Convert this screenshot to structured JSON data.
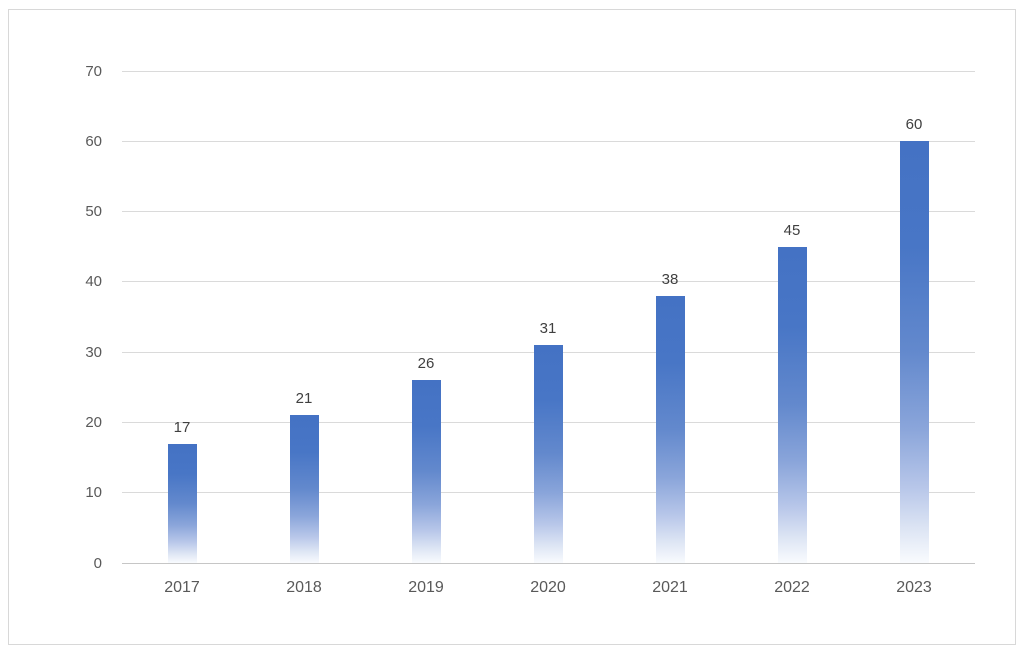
{
  "chart_data": {
    "type": "bar",
    "title": "",
    "xlabel": "",
    "ylabel": "",
    "categories": [
      "2017",
      "2018",
      "2019",
      "2020",
      "2021",
      "2022",
      "2023"
    ],
    "values": [
      17,
      21,
      26,
      31,
      38,
      45,
      60
    ],
    "data_labels": [
      "17",
      "21",
      "26",
      "31",
      "38",
      "45",
      "60"
    ],
    "ylim": [
      0,
      70
    ],
    "ytick_step": 10,
    "ytick_labels": [
      "0",
      "10",
      "20",
      "30",
      "40",
      "50",
      "60",
      "70"
    ],
    "grid": true,
    "legend": false,
    "colors": {
      "bar_top": "#4472c4",
      "bar_bottom_fade": "#ffffff",
      "gridline": "#dadada",
      "axis_line": "#c6c6c6",
      "axis_text": "#595959",
      "data_label_text": "#404040",
      "frame_border": "#d8d8d8",
      "background": "#ffffff"
    }
  }
}
